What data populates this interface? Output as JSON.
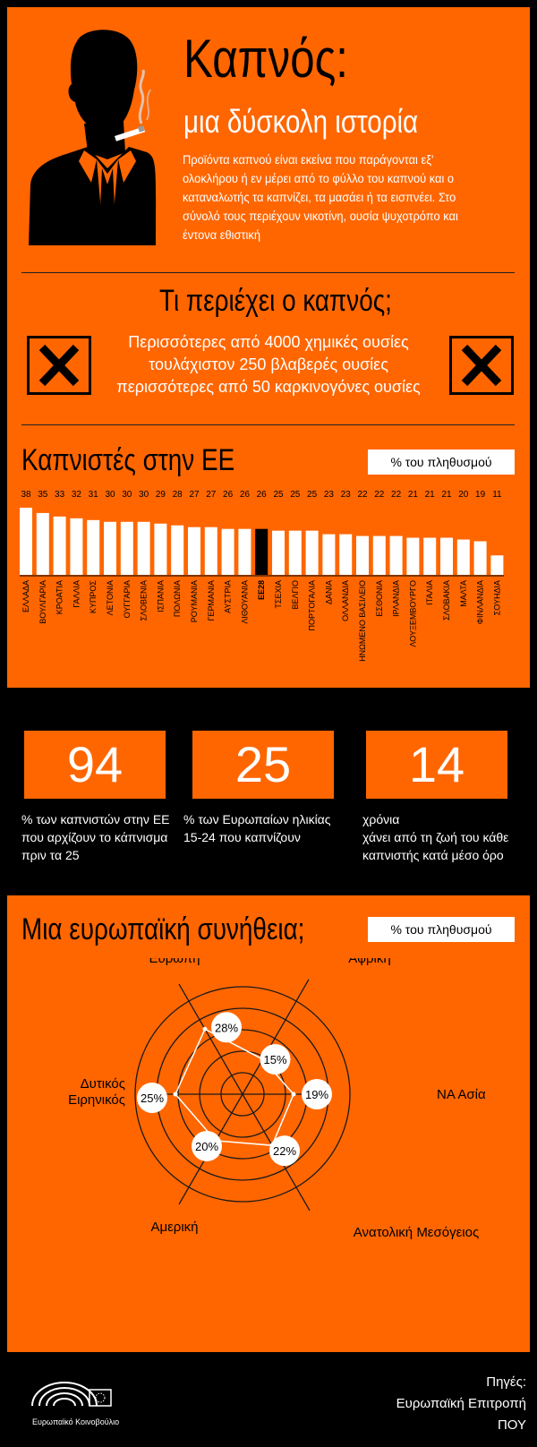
{
  "header": {
    "title": "Καπνός:",
    "subtitle": "μια δύσκολη ιστορία",
    "intro_lines": [
      "Προϊόντα καπνού είναι εκείνα που παράγονται εξ'",
      "ολοκλήρου ή εν μέρει από το φύλλο του καπνού και ο",
      "καταναλωτής τα καπνίζει, τα μασάει ή τα εισπνέει. Στο",
      "σύνολό τους περιέχουν νικοτίνη, ουσία ψυχοτρόπο και",
      "έντονα εθιστική"
    ]
  },
  "contains": {
    "title": "Τι περιέχει ο καπνός;",
    "lines": [
      "Περισσότερες από 4000 χημικές ουσίες",
      "τουλάχιστον 250 βλαβερές ουσίες",
      "περισσότερες από 50 καρκινογόνες ουσίες"
    ]
  },
  "smokers_section": {
    "title": "Καπνιστές στην ΕΕ",
    "unit_label": "% του πληθυσμού"
  },
  "stats": [
    {
      "value": "94",
      "lines": [
        "% των καπνιστών στην ΕΕ",
        "που αρχίζουν το κάπνισμα",
        "πριν τα 25"
      ]
    },
    {
      "value": "25",
      "lines": [
        "% των Ευρωπαίων ηλικίας",
        "15-24 που καπνίζουν"
      ]
    },
    {
      "value": "14",
      "lines": [
        "χρόνια",
        "χάνει από τη ζωή του κάθε",
        "καπνιστής κατά μέσο όρο"
      ]
    }
  ],
  "habit_section": {
    "title": "Μια ευρωπαϊκή συνήθεια;",
    "unit_label": "% του πληθυσμού"
  },
  "footer": {
    "logo_text": "Ευρωπαϊκό Κοινοβούλιο",
    "sources_title": "Πηγές:",
    "sources": [
      "Ευρωπαϊκή Επιτροπή",
      "ΠΟΥ"
    ]
  },
  "colors": {
    "accent": "#ff6600",
    "background": "#000000",
    "bar": "#ffffff",
    "highlight_bar": "#000000"
  },
  "chart_data": [
    {
      "type": "bar",
      "title": "Καπνιστές στην ΕΕ",
      "ylabel": "% του πληθυσμού",
      "categories": [
        "ΕΛΛΑΔΑ",
        "ΒΟΥΛΓΑΡΙΑ",
        "ΚΡΟΑΤΙΑ",
        "ΓΑΛΛΙΑ",
        "ΚΥΠΡΟΣ",
        "ΛΕΤΟΝΙΑ",
        "ΟΥΓΓΑΡΙΑ",
        "ΣΛΟΒΕΝΙΑ",
        "ΙΣΠΑΝΙΑ",
        "ΠΟΛΩΝΙΑ",
        "ΡΟΥΜΑΝΙΑ",
        "ΓΕΡΜΑΝΙΑ",
        "ΑΥΣΤΡΙΑ",
        "ΛΙΘΟΥΑΝΙΑ",
        "ΕΕ28",
        "ΤΣΕΧΙΑ",
        "ΒΕΛΓΙΟ",
        "ΠΟΡΤΟΓΑΛΙΑ",
        "ΔΑΝΙΑ",
        "ΟΛΛΑΝΔΙΑ",
        "ΗΝΩΜΕΝΟ ΒΑΣΙΛΕΙΟ",
        "ΕΣΘΟΝΙΑ",
        "ΙΡΛΑΝΔΙΑ",
        "ΛΟΥΞΕΜΒΟΥΡΓΟ",
        "ΙΤΑΛΙΑ",
        "ΣΛΟΒΑΚΙΑ",
        "ΜΑΛΤΑ",
        "ΦΙΝΛΑΝΔΙΑ",
        "ΣΟΥΗΔΙΑ"
      ],
      "values": [
        38,
        35,
        33,
        32,
        31,
        30,
        30,
        30,
        29,
        28,
        27,
        27,
        26,
        26,
        26,
        25,
        25,
        25,
        23,
        23,
        22,
        22,
        22,
        21,
        21,
        21,
        20,
        19,
        11
      ],
      "highlight": "ΕΕ28",
      "ylim": [
        0,
        40
      ]
    },
    {
      "type": "radar",
      "title": "Μια ευρωπαϊκή συνήθεια;",
      "categories": [
        "Ευρώπη",
        "Αφρική",
        "ΝΑ Ασία",
        "Ανατολική Μεσόγειος",
        "Αμερική",
        "Δυτικός Ειρηνικός"
      ],
      "values": [
        28,
        15,
        19,
        22,
        20,
        25
      ],
      "value_labels": [
        "28%",
        "15%",
        "19%",
        "22%",
        "20%",
        "25%"
      ],
      "rlim": [
        0,
        40
      ]
    }
  ]
}
